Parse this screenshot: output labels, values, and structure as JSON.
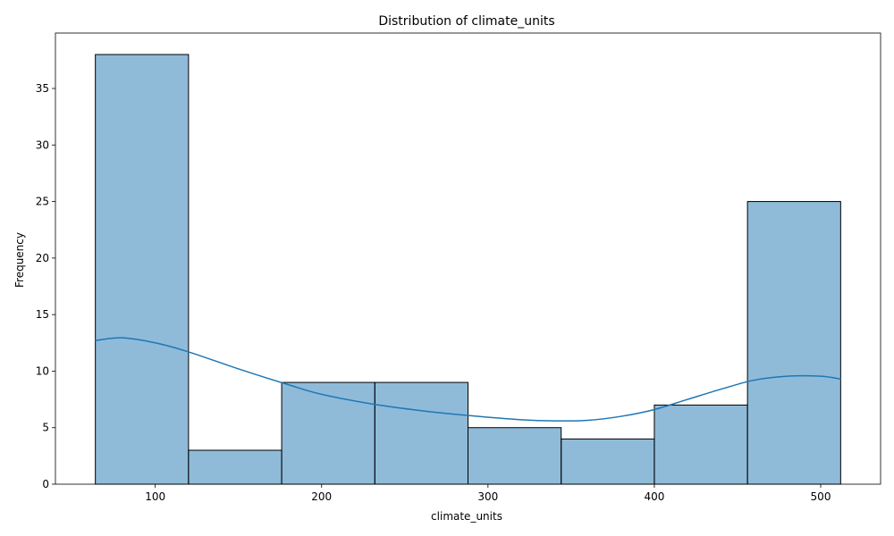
{
  "chart_data": {
    "type": "bar",
    "subtype": "histogram",
    "title": "Distribution of climate_units",
    "xlabel": "climate_units",
    "ylabel": "Frequency",
    "bin_edges": [
      64,
      120,
      176,
      232,
      288,
      344,
      400,
      456,
      512
    ],
    "values": [
      38,
      3,
      9,
      9,
      5,
      4,
      7,
      25
    ],
    "xlim": [
      40,
      536
    ],
    "ylim": [
      0,
      39.9
    ],
    "x_ticks": [
      100,
      200,
      300,
      400,
      500
    ],
    "y_ticks": [
      0,
      5,
      10,
      15,
      20,
      25,
      30,
      35
    ],
    "kde": {
      "x": [
        64,
        80,
        100,
        120,
        150,
        180,
        200,
        230,
        260,
        290,
        320,
        340,
        360,
        380,
        400,
        420,
        440,
        460,
        480,
        500,
        512
      ],
      "y": [
        12.7,
        12.95,
        12.5,
        11.7,
        10.2,
        8.8,
        7.95,
        7.1,
        6.5,
        6.05,
        5.7,
        5.6,
        5.65,
        6.0,
        6.6,
        7.5,
        8.4,
        9.2,
        9.55,
        9.55,
        9.3
      ]
    },
    "colors": {
      "bar_fill": "#1f77b4",
      "bar_fill_opacity": 0.5,
      "bar_edge": "#000000",
      "kde_line": "#1f77b4"
    },
    "grid": false,
    "legend": "none"
  }
}
